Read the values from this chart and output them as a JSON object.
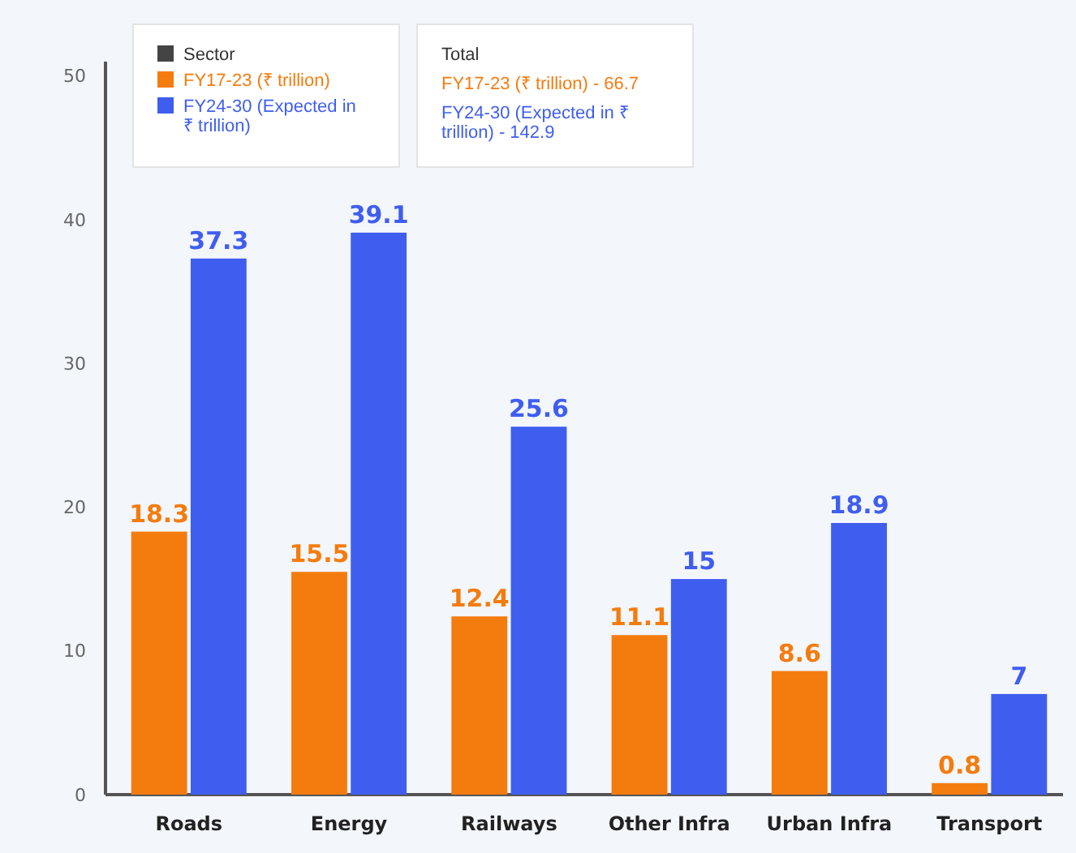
{
  "chart_data": {
    "type": "bar",
    "categories": [
      "Roads",
      "Energy",
      "Railways",
      "Other Infra",
      "Urban Infra",
      "Transport"
    ],
    "series": [
      {
        "name": "FY17-23 (₹ trillion)",
        "color": "#f47c0f",
        "values": [
          18.3,
          15.5,
          12.4,
          11.1,
          8.6,
          0.8
        ]
      },
      {
        "name": "FY24-30 (Expected in ₹ trillion)",
        "color": "#3f5ef0",
        "values": [
          37.3,
          39.1,
          25.6,
          15,
          18.9,
          7
        ]
      }
    ],
    "legend_title": "Sector",
    "legend": "top left",
    "data_labels": true,
    "grid": false,
    "ylim": [
      0,
      51
    ],
    "yticks": [
      0,
      10,
      20,
      30,
      40,
      50
    ],
    "annotations": [
      "Total",
      "FY17-23 (₹ trillion) - 66.7",
      "FY24-30 (Expected in ₹ trillion) - 142.9"
    ]
  }
}
